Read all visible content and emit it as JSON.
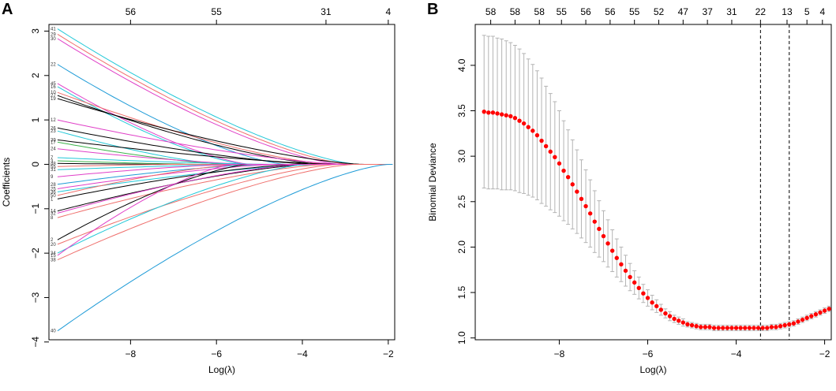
{
  "panels": {
    "a": {
      "letter": "A"
    },
    "b": {
      "letter": "B"
    }
  },
  "chart_data": [
    {
      "type": "line",
      "panel": "A",
      "title": "",
      "xlabel": "Log(λ)",
      "ylabel": "Coefficients",
      "xlim": [
        -9.9,
        -1.85
      ],
      "ylim": [
        -3.95,
        3.15
      ],
      "x_ticks": [
        -8,
        -6,
        -4,
        -2
      ],
      "y_ticks": [
        -4,
        -3,
        -2,
        -1,
        0,
        1,
        2,
        3
      ],
      "top_axis": {
        "positions": [
          -8,
          -6,
          -3.45,
          -2
        ],
        "labels": [
          "56",
          "55",
          "31",
          "4"
        ]
      },
      "x_start": -9.7,
      "series": [
        {
          "name": "41",
          "c0": 3.05,
          "xz": -2.7,
          "color": "#22c8d8"
        },
        {
          "name": "29",
          "c0": 2.93,
          "xz": -2.9,
          "color": "#ef6f6c"
        },
        {
          "name": "30",
          "c0": 2.83,
          "xz": -3.1,
          "color": "#e040c8"
        },
        {
          "name": "22",
          "c0": 2.25,
          "xz": -4.4,
          "color": "#1e9bd7"
        },
        {
          "name": "45",
          "c0": 1.82,
          "xz": -5.2,
          "color": "#e040c8"
        },
        {
          "name": "16",
          "c0": 1.75,
          "xz": -5.3,
          "color": "#22c8d8"
        },
        {
          "name": "10",
          "c0": 1.62,
          "xz": -3.3,
          "color": "#ef6f6c"
        },
        {
          "name": "27",
          "c0": 1.55,
          "xz": -3.5,
          "color": "#000000"
        },
        {
          "name": "19",
          "c0": 1.48,
          "xz": -2.6,
          "color": "#000000"
        },
        {
          "name": "12",
          "c0": 1.0,
          "xz": -3.0,
          "color": "#e040c8"
        },
        {
          "name": "26",
          "c0": 0.82,
          "xz": -3.7,
          "color": "#000000"
        },
        {
          "name": "23",
          "c0": 0.75,
          "xz": -5.8,
          "color": "#22c8d8"
        },
        {
          "name": "39",
          "c0": 0.55,
          "xz": -3.2,
          "color": "#000000"
        },
        {
          "name": "17",
          "c0": 0.5,
          "xz": -5.7,
          "color": "#3cb44b"
        },
        {
          "name": "24",
          "c0": 0.35,
          "xz": -5.1,
          "color": "#e040c8"
        },
        {
          "name": "7",
          "c0": 0.15,
          "xz": -4.7,
          "color": "#22c8d8"
        },
        {
          "name": "3",
          "c0": 0.08,
          "xz": -6.2,
          "color": "#3cb44b"
        },
        {
          "name": "48",
          "c0": 0.02,
          "xz": -6.6,
          "color": "#000000"
        },
        {
          "name": "55",
          "c0": -0.05,
          "xz": -6.9,
          "color": "#ef6f6c"
        },
        {
          "name": "31",
          "c0": -0.12,
          "xz": -5.0,
          "color": "#22c8d8"
        },
        {
          "name": "9",
          "c0": -0.28,
          "xz": -5.5,
          "color": "#e040c8"
        },
        {
          "name": "28",
          "c0": -0.45,
          "xz": -4.9,
          "color": "#1e9bd7"
        },
        {
          "name": "25",
          "c0": -0.55,
          "xz": -4.5,
          "color": "#e040c8"
        },
        {
          "name": "36",
          "c0": -0.62,
          "xz": -3.6,
          "color": "#22c8d8"
        },
        {
          "name": "50",
          "c0": -0.7,
          "xz": -5.4,
          "color": "#ef6f6c"
        },
        {
          "name": "1",
          "c0": -0.78,
          "xz": -4.1,
          "color": "#000000"
        },
        {
          "name": "14",
          "c0": -1.05,
          "xz": -3.8,
          "color": "#000000"
        },
        {
          "name": "32",
          "c0": -1.1,
          "xz": -4.0,
          "color": "#e040c8"
        },
        {
          "name": "8",
          "c0": -1.2,
          "xz": -3.4,
          "color": "#ef6f6c"
        },
        {
          "name": "2",
          "c0": -1.7,
          "xz": -5.25,
          "color": "#000000"
        },
        {
          "name": "20",
          "c0": -1.8,
          "xz": -3.15,
          "color": "#ef6f6c"
        },
        {
          "name": "34",
          "c0": -2.0,
          "xz": -3.9,
          "color": "#22c8d8"
        },
        {
          "name": "15",
          "c0": -2.05,
          "xz": -5.6,
          "color": "#e040c8"
        },
        {
          "name": "38",
          "c0": -2.15,
          "xz": -2.8,
          "color": "#ef6f6c"
        },
        {
          "name": "40",
          "c0": -3.75,
          "xz": -2.0,
          "color": "#1e9bd7"
        }
      ]
    },
    {
      "type": "scatter",
      "panel": "B",
      "title": "",
      "xlabel": "Log(λ)",
      "ylabel": "Binomial Deviance",
      "xlim": [
        -9.9,
        -1.85
      ],
      "ylim": [
        0.98,
        4.45
      ],
      "x_ticks": [
        -8,
        -6,
        -4,
        -2
      ],
      "y_ticks": [
        1.0,
        1.5,
        2.0,
        2.5,
        3.0,
        3.5,
        4.0
      ],
      "y_tick_labels": [
        "1.0",
        "1.5",
        "2.0",
        "2.5",
        "3.0",
        "3.5",
        "4.0"
      ],
      "top_axis": {
        "positions": [
          -9.55,
          -9.0,
          -8.45,
          -7.95,
          -7.4,
          -6.85,
          -6.3,
          -5.75,
          -5.2,
          -4.65,
          -4.1,
          -3.45,
          -2.85,
          -2.4,
          -2.05
        ],
        "labels": [
          "58",
          "58",
          "58",
          "55",
          "56",
          "56",
          "55",
          "52",
          "47",
          "37",
          "31",
          "22",
          "13",
          "5",
          "4"
        ]
      },
      "vlines": [
        -3.45,
        -2.8
      ],
      "x": [
        -9.7,
        -9.6,
        -9.5,
        -9.4,
        -9.3,
        -9.2,
        -9.1,
        -9.0,
        -8.9,
        -8.8,
        -8.7,
        -8.6,
        -8.5,
        -8.4,
        -8.3,
        -8.2,
        -8.1,
        -8.0,
        -7.9,
        -7.8,
        -7.7,
        -7.6,
        -7.5,
        -7.4,
        -7.3,
        -7.2,
        -7.1,
        -7.0,
        -6.9,
        -6.8,
        -6.7,
        -6.6,
        -6.5,
        -6.4,
        -6.3,
        -6.2,
        -6.1,
        -6.0,
        -5.9,
        -5.8,
        -5.7,
        -5.6,
        -5.5,
        -5.4,
        -5.3,
        -5.2,
        -5.1,
        -5.0,
        -4.9,
        -4.8,
        -4.7,
        -4.6,
        -4.5,
        -4.4,
        -4.3,
        -4.2,
        -4.1,
        -4.0,
        -3.9,
        -3.8,
        -3.7,
        -3.6,
        -3.5,
        -3.4,
        -3.3,
        -3.2,
        -3.1,
        -3.0,
        -2.9,
        -2.8,
        -2.7,
        -2.6,
        -2.5,
        -2.4,
        -2.3,
        -2.2,
        -2.1,
        -2.0,
        -1.9
      ],
      "y": [
        3.49,
        3.48,
        3.48,
        3.47,
        3.46,
        3.45,
        3.44,
        3.42,
        3.39,
        3.36,
        3.32,
        3.28,
        3.23,
        3.17,
        3.11,
        3.05,
        2.99,
        2.92,
        2.84,
        2.77,
        2.69,
        2.61,
        2.53,
        2.45,
        2.37,
        2.28,
        2.2,
        2.12,
        2.04,
        1.96,
        1.88,
        1.81,
        1.74,
        1.67,
        1.61,
        1.55,
        1.49,
        1.44,
        1.39,
        1.35,
        1.31,
        1.27,
        1.24,
        1.21,
        1.19,
        1.17,
        1.15,
        1.14,
        1.13,
        1.12,
        1.12,
        1.12,
        1.11,
        1.11,
        1.11,
        1.11,
        1.11,
        1.11,
        1.11,
        1.11,
        1.11,
        1.11,
        1.11,
        1.11,
        1.11,
        1.12,
        1.12,
        1.13,
        1.14,
        1.15,
        1.16,
        1.18,
        1.2,
        1.22,
        1.24,
        1.26,
        1.28,
        1.3,
        1.32
      ],
      "err": [
        0.84,
        0.84,
        0.84,
        0.83,
        0.83,
        0.82,
        0.81,
        0.8,
        0.79,
        0.77,
        0.75,
        0.73,
        0.71,
        0.69,
        0.66,
        0.64,
        0.61,
        0.58,
        0.55,
        0.52,
        0.49,
        0.46,
        0.43,
        0.4,
        0.37,
        0.34,
        0.31,
        0.28,
        0.26,
        0.23,
        0.21,
        0.19,
        0.17,
        0.15,
        0.13,
        0.12,
        0.1,
        0.09,
        0.08,
        0.07,
        0.06,
        0.05,
        0.05,
        0.04,
        0.04,
        0.04,
        0.03,
        0.03,
        0.03,
        0.03,
        0.03,
        0.03,
        0.03,
        0.03,
        0.03,
        0.03,
        0.03,
        0.03,
        0.03,
        0.03,
        0.03,
        0.03,
        0.03,
        0.03,
        0.03,
        0.03,
        0.03,
        0.03,
        0.03,
        0.03,
        0.03,
        0.03,
        0.03,
        0.03,
        0.03,
        0.03,
        0.03,
        0.03,
        0.03
      ],
      "point_color": "#ff0000",
      "errorbar_color": "#b4b4b4"
    }
  ]
}
